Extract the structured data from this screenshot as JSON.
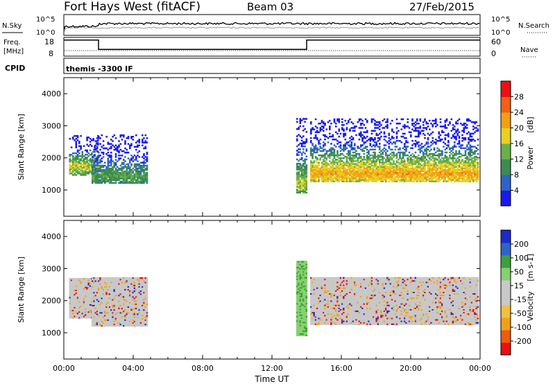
{
  "header": {
    "station": "Fort Hays West (fitACF)",
    "beam": "Beam 03",
    "date": "27/Feb/2015"
  },
  "top_panels": {
    "nsky_label": "N.Sky",
    "nsky_ticks": [
      "10^5",
      "10^0"
    ],
    "nsearch_label": "N.Search",
    "nsearch_ticks": [
      "10^5",
      "10^0"
    ],
    "freq_label_1": "Freq.",
    "freq_label_2": "[MHz]",
    "freq_ticks": [
      "18",
      "8"
    ],
    "nave_label": "Nave",
    "nave_ticks": [
      "60",
      "0"
    ],
    "cpid_label": "CPID",
    "cpid_text": "themis -3300 IF",
    "freq_steps": [
      {
        "from": "00:00",
        "to": "02:00",
        "mhz": 17.3
      },
      {
        "from": "02:00",
        "to": "14:00",
        "mhz": 11.3
      },
      {
        "from": "14:00",
        "to": "24:00",
        "mhz": 17.3
      }
    ]
  },
  "colors": {
    "power_scale": [
      "#1a1aee",
      "#2e64c8",
      "#3c8c50",
      "#6ab04a",
      "#e8d020",
      "#f0a018",
      "#f06018",
      "#ee1010"
    ],
    "velocity_scale": [
      "#e81010",
      "#f05a10",
      "#f0a018",
      "#f0c040",
      "#c8c8c8",
      "#c8c8c8",
      "#88d070",
      "#3ca03c",
      "#2e64c8",
      "#1a2acc"
    ],
    "gray": "#c8c8c8"
  },
  "chart_data": [
    {
      "type": "heatmap",
      "title": "",
      "parameter": "Power",
      "ylabel": "Slant Range [km]",
      "xlabel": "",
      "x_ticks": [
        "00:00",
        "04:00",
        "08:00",
        "12:00",
        "16:00",
        "20:00",
        "00:00"
      ],
      "y_ticks": [
        "1000",
        "2000",
        "3000",
        "4000"
      ],
      "ylim": [
        180,
        4500
      ],
      "xlim": [
        "00:00",
        "24:00"
      ],
      "colorbar": {
        "label": "Power",
        "unit": "[dB]",
        "ticks": [
          "28",
          "24",
          "20",
          "16",
          "12",
          "8",
          "4"
        ],
        "range": [
          0,
          32
        ]
      },
      "regions": [
        {
          "t0": 0.3,
          "t1": 2.0,
          "r0": 1450,
          "r1": 2700,
          "peak": 1700,
          "level": 18
        },
        {
          "t0": 1.6,
          "t1": 4.8,
          "r0": 1200,
          "r1": 2700,
          "peak": 1400,
          "level": 12
        },
        {
          "t0": 13.4,
          "t1": 14.0,
          "r0": 900,
          "r1": 3200,
          "peak": 1200,
          "level": 16
        },
        {
          "t0": 14.2,
          "t1": 23.9,
          "r0": 1250,
          "r1": 3200,
          "peak": 1500,
          "level": 22
        }
      ]
    },
    {
      "type": "heatmap",
      "title": "",
      "parameter": "Velocity",
      "ylabel": "Slant Range [km]",
      "xlabel": "Time UT",
      "x_ticks": [
        "00:00",
        "04:00",
        "08:00",
        "12:00",
        "16:00",
        "20:00",
        "00:00"
      ],
      "y_ticks": [
        "1000",
        "2000",
        "3000",
        "4000"
      ],
      "ylim": [
        180,
        4500
      ],
      "xlim": [
        "00:00",
        "24:00"
      ],
      "colorbar": {
        "label": "Velocity",
        "unit": "[m s-1]",
        "ticks": [
          "200",
          "100",
          "50",
          "15",
          "-15",
          "-50",
          "-100",
          "-200"
        ],
        "range": [
          -250,
          250
        ]
      },
      "regions": [
        {
          "t0": 0.3,
          "t1": 2.0,
          "r0": 1450,
          "r1": 2700,
          "velocity": 0
        },
        {
          "t0": 1.6,
          "t1": 4.8,
          "r0": 1200,
          "r1": 2700,
          "velocity": 0
        },
        {
          "t0": 13.4,
          "t1": 14.0,
          "r0": 900,
          "r1": 3200,
          "velocity": 40
        },
        {
          "t0": 14.2,
          "t1": 23.9,
          "r0": 1250,
          "r1": 2700,
          "velocity": 0
        }
      ]
    }
  ]
}
